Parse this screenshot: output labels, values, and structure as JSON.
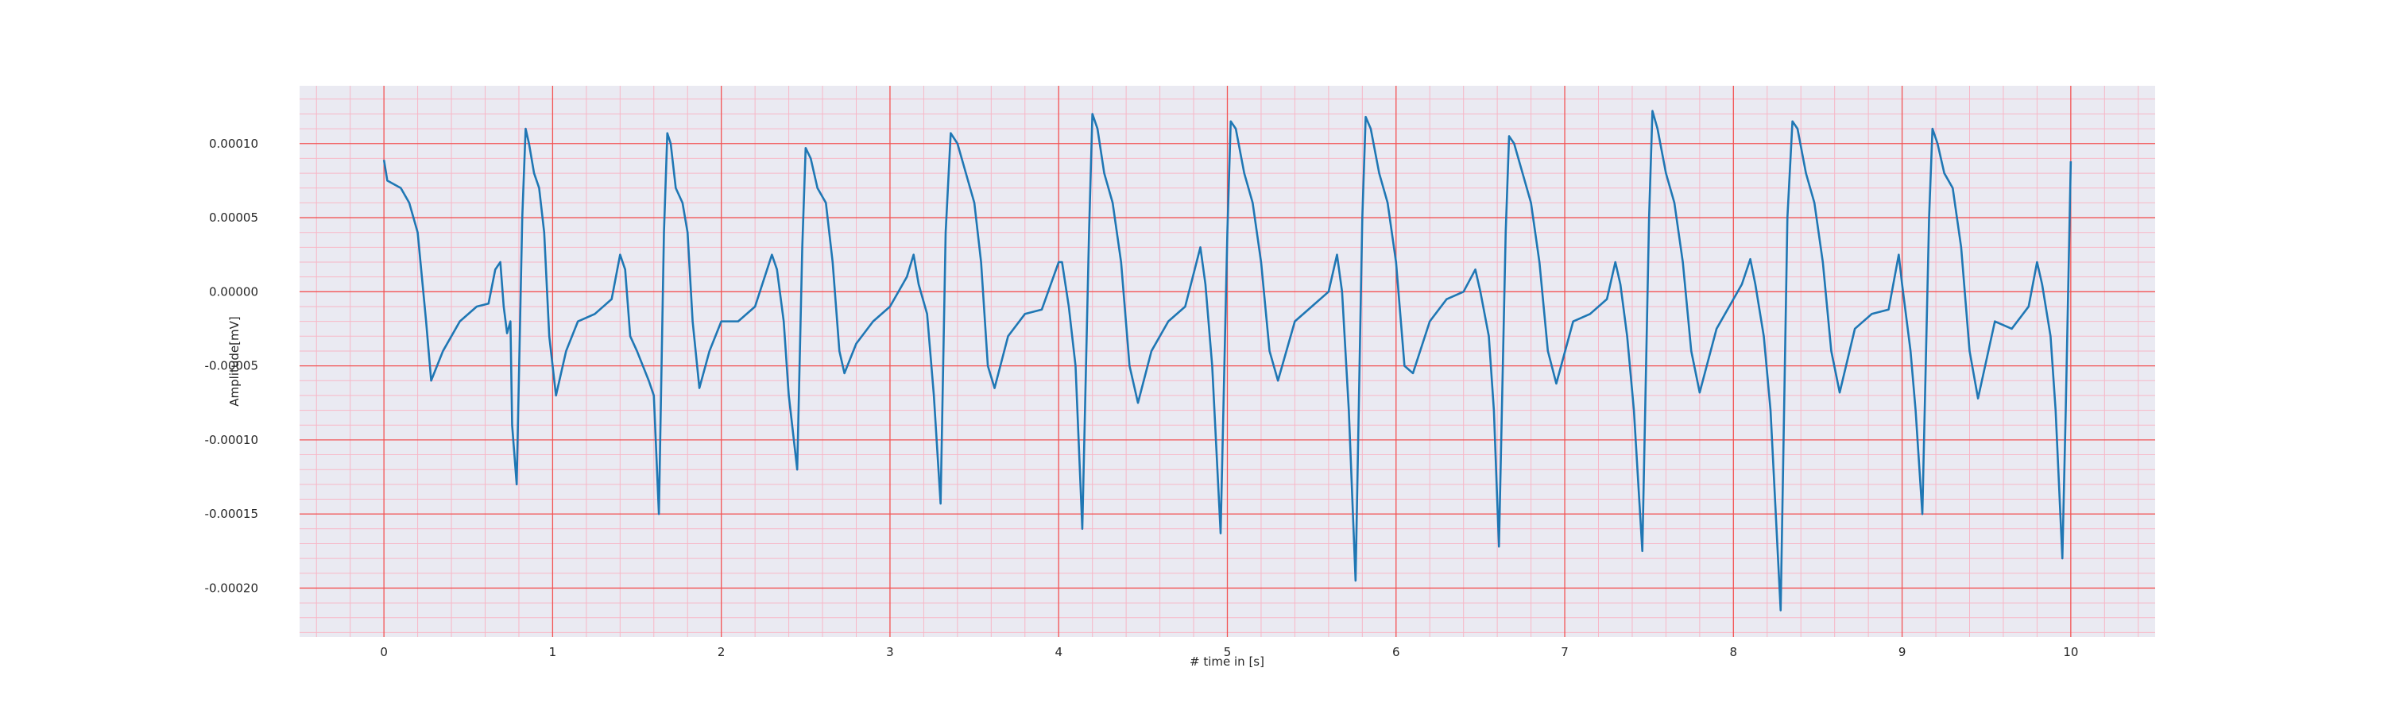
{
  "chart_data": {
    "type": "line",
    "xlabel": "# time in [s]",
    "ylabel": "Amplitude[mV]",
    "color": "#1f77b4",
    "grid": true,
    "minor_grid": true,
    "xlim": [
      -0.5,
      10.5
    ],
    "xticks": [
      0,
      1,
      2,
      3,
      4,
      5,
      6,
      7,
      8,
      9,
      10
    ],
    "ylim": [
      -0.000233,
      0.000139
    ],
    "yticks": [
      {
        "value": -0.0002,
        "label": "-0.00020"
      },
      {
        "value": -0.00015,
        "label": "-0.00015"
      },
      {
        "value": -0.0001,
        "label": "-0.00010"
      },
      {
        "value": -5e-05,
        "label": "-0.00005"
      },
      {
        "value": 0,
        "label": "0.00000"
      },
      {
        "value": 5e-05,
        "label": "0.00005"
      },
      {
        "value": 0.0001,
        "label": "0.00010"
      }
    ],
    "x": [
      0,
      0.02,
      0.1,
      0.15,
      0.2,
      0.25,
      0.28,
      0.35,
      0.45,
      0.55,
      0.62,
      0.66,
      0.69,
      0.71,
      0.73,
      0.75,
      0.76,
      0.787,
      0.82,
      0.84,
      0.86,
      0.89,
      0.92,
      0.95,
      0.98,
      1.02,
      1.08,
      1.15,
      1.25,
      1.35,
      1.4,
      1.43,
      1.46,
      1.5,
      1.57,
      1.6,
      1.63,
      1.66,
      1.68,
      1.7,
      1.73,
      1.77,
      1.8,
      1.83,
      1.87,
      1.93,
      2.0,
      2.1,
      2.2,
      2.3,
      2.33,
      2.37,
      2.4,
      2.45,
      2.48,
      2.5,
      2.53,
      2.57,
      2.62,
      2.66,
      2.7,
      2.73,
      2.8,
      2.9,
      3.0,
      3.1,
      3.14,
      3.17,
      3.22,
      3.26,
      3.3,
      3.33,
      3.36,
      3.4,
      3.45,
      3.5,
      3.54,
      3.58,
      3.62,
      3.7,
      3.8,
      3.9,
      4.0,
      4.02,
      4.06,
      4.1,
      4.14,
      4.18,
      4.2,
      4.23,
      4.27,
      4.32,
      4.37,
      4.42,
      4.47,
      4.55,
      4.65,
      4.75,
      4.84,
      4.87,
      4.91,
      4.96,
      5.0,
      5.02,
      5.05,
      5.1,
      5.15,
      5.2,
      5.25,
      5.3,
      5.4,
      5.5,
      5.6,
      5.65,
      5.68,
      5.72,
      5.76,
      5.8,
      5.82,
      5.85,
      5.9,
      5.95,
      6.0,
      6.05,
      6.1,
      6.2,
      6.3,
      6.4,
      6.47,
      6.5,
      6.55,
      6.58,
      6.61,
      6.65,
      6.67,
      6.7,
      6.75,
      6.8,
      6.85,
      6.9,
      6.95,
      7.05,
      7.15,
      7.25,
      7.3,
      7.33,
      7.37,
      7.41,
      7.46,
      7.5,
      7.52,
      7.55,
      7.6,
      7.65,
      7.7,
      7.75,
      7.8,
      7.9,
      8.0,
      8.05,
      8.1,
      8.13,
      8.18,
      8.22,
      8.28,
      8.32,
      8.35,
      8.38,
      8.43,
      8.48,
      8.53,
      8.58,
      8.63,
      8.72,
      8.82,
      8.92,
      8.98,
      9.0,
      9.05,
      9.08,
      9.12,
      9.16,
      9.18,
      9.21,
      9.25,
      9.3,
      9.35,
      9.4,
      9.45,
      9.55,
      9.65,
      9.75,
      9.8,
      9.83,
      9.88,
      9.91,
      9.95,
      9.97,
      10.0
    ],
    "values": [
      8.9e-05,
      7.5e-05,
      7e-05,
      6e-05,
      4e-05,
      -2e-05,
      -6e-05,
      -4e-05,
      -2e-05,
      -1e-05,
      -8e-06,
      1.5e-05,
      2e-05,
      -1e-05,
      -2.8e-05,
      -2e-05,
      -9e-05,
      -0.00013,
      5e-05,
      0.00011,
      0.0001,
      8e-05,
      7e-05,
      4e-05,
      -3e-05,
      -7e-05,
      -4e-05,
      -2e-05,
      -1.5e-05,
      -5e-06,
      2.5e-05,
      1.5e-05,
      -3e-05,
      -4e-05,
      -6e-05,
      -7e-05,
      -0.00015,
      4e-05,
      0.000107,
      0.0001,
      7e-05,
      6e-05,
      4e-05,
      -2e-05,
      -6.5e-05,
      -4e-05,
      -2e-05,
      -2e-05,
      -1e-05,
      2.5e-05,
      1.5e-05,
      -2e-05,
      -7e-05,
      -0.00012,
      3e-05,
      9.7e-05,
      9e-05,
      7e-05,
      6e-05,
      2e-05,
      -4e-05,
      -5.5e-05,
      -3.5e-05,
      -2e-05,
      -1e-05,
      1e-05,
      2.5e-05,
      5e-06,
      -1.5e-05,
      -7e-05,
      -0.000143,
      4e-05,
      0.000107,
      0.0001,
      8e-05,
      6e-05,
      2e-05,
      -5e-05,
      -6.5e-05,
      -3e-05,
      -1.5e-05,
      -1.2e-05,
      2e-05,
      2e-05,
      -1e-05,
      -5e-05,
      -0.00016,
      4e-05,
      0.00012,
      0.00011,
      8e-05,
      6e-05,
      2e-05,
      -5e-05,
      -7.5e-05,
      -4e-05,
      -2e-05,
      -1e-05,
      3e-05,
      5e-06,
      -5e-05,
      -0.000163,
      4e-05,
      0.000115,
      0.00011,
      8e-05,
      6e-05,
      2e-05,
      -4e-05,
      -6e-05,
      -2e-05,
      -1e-05,
      0,
      2.5e-05,
      0,
      -8e-05,
      -0.000195,
      5e-05,
      0.000118,
      0.00011,
      8e-05,
      6e-05,
      2e-05,
      -5e-05,
      -5.5e-05,
      -2e-05,
      -5e-06,
      0,
      1.5e-05,
      0,
      -3e-05,
      -8e-05,
      -0.000172,
      4e-05,
      0.000105,
      0.0001,
      8e-05,
      6e-05,
      2e-05,
      -4e-05,
      -6.2e-05,
      -2e-05,
      -1.5e-05,
      -5e-06,
      2e-05,
      5e-06,
      -3e-05,
      -8e-05,
      -0.000175,
      5e-05,
      0.000122,
      0.00011,
      8e-05,
      6e-05,
      2e-05,
      -4e-05,
      -6.8e-05,
      -2.5e-05,
      -5e-06,
      5e-06,
      2.2e-05,
      5e-06,
      -3e-05,
      -8e-05,
      -0.000215,
      5e-05,
      0.000115,
      0.00011,
      8e-05,
      6e-05,
      2e-05,
      -4e-05,
      -6.8e-05,
      -2.5e-05,
      -1.5e-05,
      -1.2e-05,
      2.5e-05,
      5e-06,
      -4e-05,
      -8e-05,
      -0.00015,
      5e-05,
      0.00011,
      0.0001,
      8e-05,
      7e-05,
      3e-05,
      -4e-05,
      -7.2e-05,
      -2e-05,
      -2.5e-05,
      -1e-05,
      2e-05,
      5e-06,
      -3e-05,
      -8e-05,
      -0.00018,
      -8e-05,
      8.8e-05
    ]
  }
}
